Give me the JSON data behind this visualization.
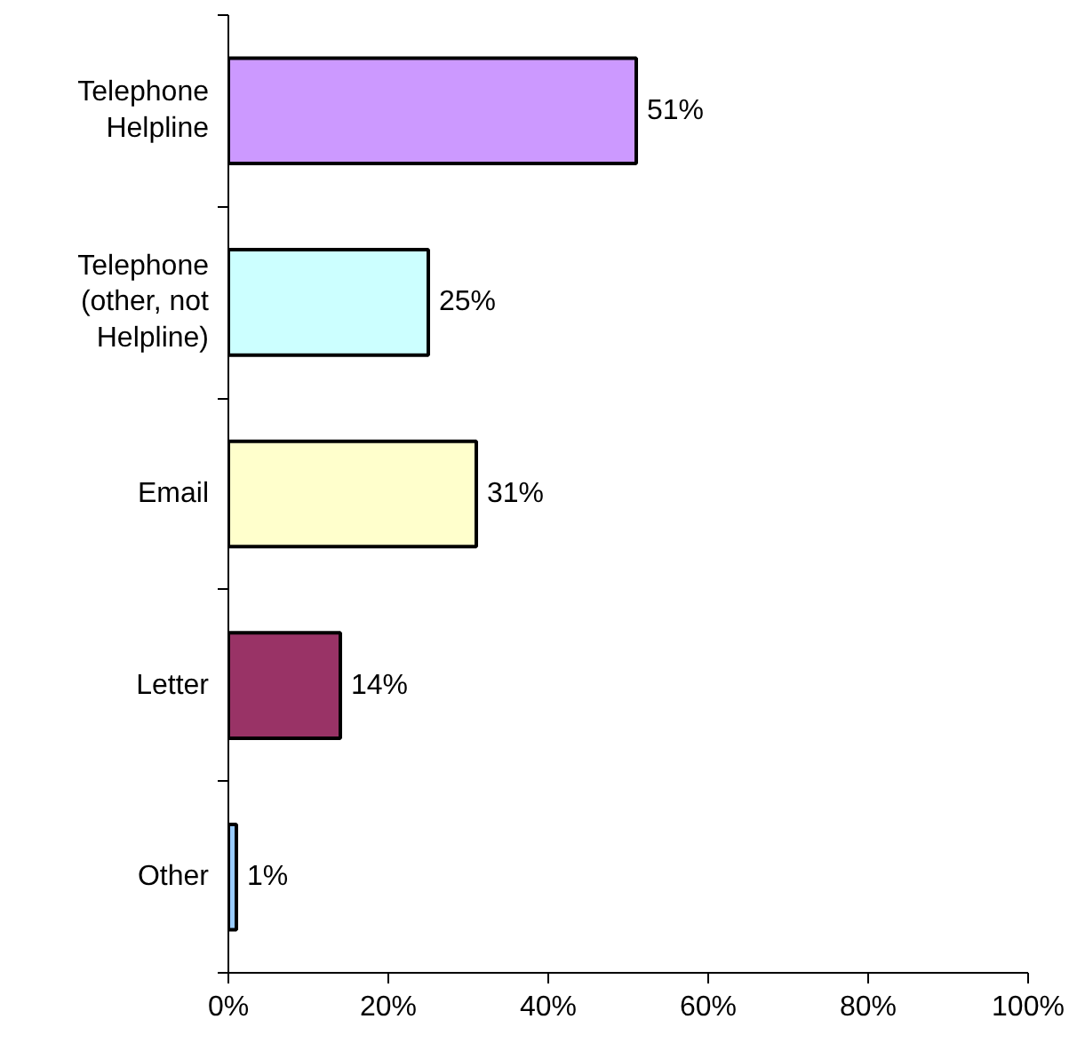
{
  "chart_data": {
    "type": "bar",
    "orientation": "horizontal",
    "categories": [
      "Telephone Helpline",
      "Telephone (other, not Helpline)",
      "Email",
      "Letter",
      "Other"
    ],
    "values": [
      51,
      25,
      31,
      14,
      1
    ],
    "colors": [
      "#cc99ff",
      "#ccffff",
      "#ffffcc",
      "#993366",
      "#99ccff"
    ],
    "value_labels": [
      "51%",
      "25%",
      "31%",
      "14%",
      "1%"
    ],
    "xlim": [
      0,
      100
    ],
    "xticks": [
      {
        "value": 0,
        "label": "0%"
      },
      {
        "value": 20,
        "label": "20%"
      },
      {
        "value": 40,
        "label": "40%"
      },
      {
        "value": 60,
        "label": "60%"
      },
      {
        "value": 80,
        "label": "80%"
      },
      {
        "value": 100,
        "label": "100%"
      }
    ],
    "grid": false
  }
}
